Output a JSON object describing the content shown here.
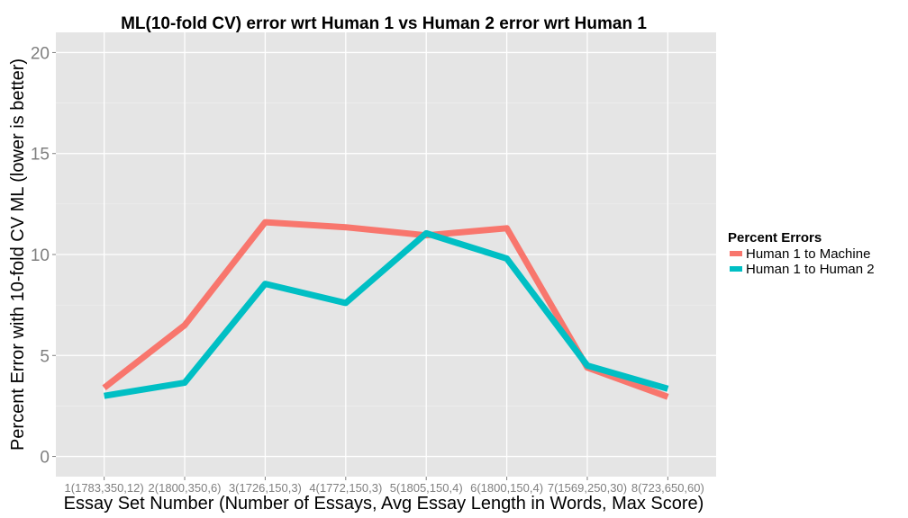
{
  "chart_data": {
    "type": "line",
    "title": "ML(10-fold CV) error wrt Human 1 vs Human 2 error wrt Human 1",
    "xlabel": "Essay Set Number (Number of Essays, Avg Essay Length in Words, Max Score)",
    "ylabel": "Percent Error with 10-fold CV ML (lower is better)",
    "categories": [
      "1(1783,350,12)",
      "2(1800,350,6)",
      "3(1726,150,3)",
      "4(1772,150,3)",
      "5(1805,150,4)",
      "6(1800,150,4)",
      "7(1569,250,30)",
      "8(723,650,60)"
    ],
    "yticks": [
      0,
      5,
      10,
      15,
      20
    ],
    "ylim": [
      -1,
      21
    ],
    "grid": true,
    "legend": {
      "title": "Percent Errors",
      "placement": "right"
    },
    "series": [
      {
        "name": "Human 1 to Machine",
        "color": "#F8766D",
        "values": [
          3.4,
          6.5,
          11.6,
          11.35,
          10.95,
          11.3,
          4.4,
          2.95
        ]
      },
      {
        "name": "Human 1 to Human 2",
        "color": "#00BFC4",
        "values": [
          3.0,
          3.65,
          8.55,
          7.6,
          11.05,
          9.8,
          4.5,
          3.35
        ]
      }
    ]
  }
}
